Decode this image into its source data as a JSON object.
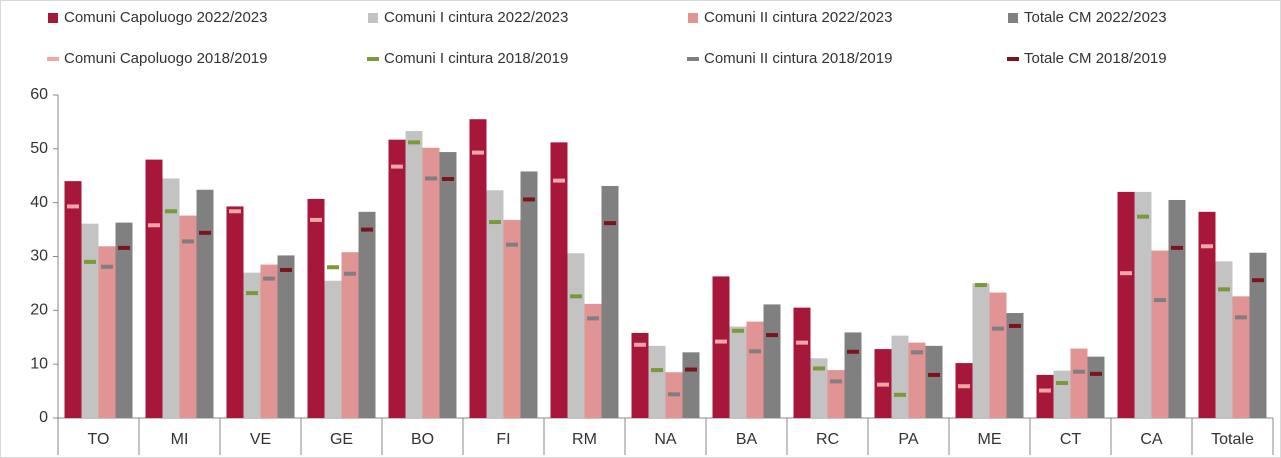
{
  "chart_data": {
    "type": "bar",
    "categories": [
      "TO",
      "MI",
      "VE",
      "GE",
      "BO",
      "FI",
      "RM",
      "NA",
      "BA",
      "RC",
      "PA",
      "ME",
      "CT",
      "CA",
      "Totale"
    ],
    "series": [
      {
        "name": "Comuni Capoluogo 2022/2023",
        "style": "bar",
        "color": "#a6173a",
        "values": [
          44,
          48,
          39.3,
          40.7,
          51.7,
          55.5,
          51.2,
          15.8,
          26.3,
          20.5,
          12.8,
          10.2,
          8,
          42,
          38.3
        ]
      },
      {
        "name": "Comuni I cintura 2022/2023",
        "style": "bar",
        "color": "#c3c3c3",
        "values": [
          36.1,
          44.5,
          27,
          25.5,
          53.3,
          42.3,
          30.6,
          13.4,
          17,
          11.1,
          15.3,
          25,
          8.8,
          42,
          29.1
        ]
      },
      {
        "name": "Comuni II cintura 2022/2023",
        "style": "bar",
        "color": "#e09494",
        "values": [
          31.9,
          37.6,
          28.5,
          30.8,
          50.2,
          36.8,
          21.2,
          8.5,
          17.9,
          8.9,
          14,
          23.3,
          12.9,
          31.1,
          22.6
        ]
      },
      {
        "name": "Totale CM 2022/2023",
        "style": "bar",
        "color": "#808080",
        "values": [
          36.3,
          42.4,
          30.2,
          38.3,
          49.4,
          45.8,
          43.1,
          12.2,
          21.1,
          15.9,
          13.4,
          19.5,
          11.4,
          40.5,
          30.7
        ]
      },
      {
        "name": "Comuni Capoluogo 2018/2019",
        "style": "marker",
        "color": "#f2a6a6",
        "values": [
          39.3,
          35.8,
          38.4,
          36.8,
          46.7,
          49.3,
          44.1,
          13.6,
          14.2,
          14,
          6.2,
          5.9,
          5.1,
          26.9,
          31.9
        ]
      },
      {
        "name": "Comuni I cintura 2018/2019",
        "style": "marker",
        "color": "#7a9a3a",
        "values": [
          29,
          38.4,
          23.2,
          28,
          51.2,
          36.4,
          22.6,
          8.9,
          16.2,
          9.2,
          4.3,
          24.7,
          6.5,
          37.4,
          23.9
        ]
      },
      {
        "name": "Comuni II cintura 2018/2019",
        "style": "marker",
        "color": "#7f7f7f",
        "values": [
          28.1,
          32.8,
          25.9,
          26.8,
          44.5,
          32.2,
          18.5,
          4.4,
          12.4,
          6.8,
          12.2,
          16.6,
          8.6,
          21.9,
          18.7
        ]
      },
      {
        "name": "Totale CM 2018/2019",
        "style": "marker",
        "color": "#7a1520",
        "values": [
          31.6,
          34.4,
          27.5,
          35,
          44.4,
          40.6,
          36.2,
          9,
          15.4,
          12.3,
          8,
          17.1,
          8.2,
          31.6,
          25.6
        ]
      }
    ],
    "ylim": [
      0,
      60
    ],
    "yticks": [
      0,
      10,
      20,
      30,
      40,
      50,
      60
    ],
    "legend": "top"
  }
}
